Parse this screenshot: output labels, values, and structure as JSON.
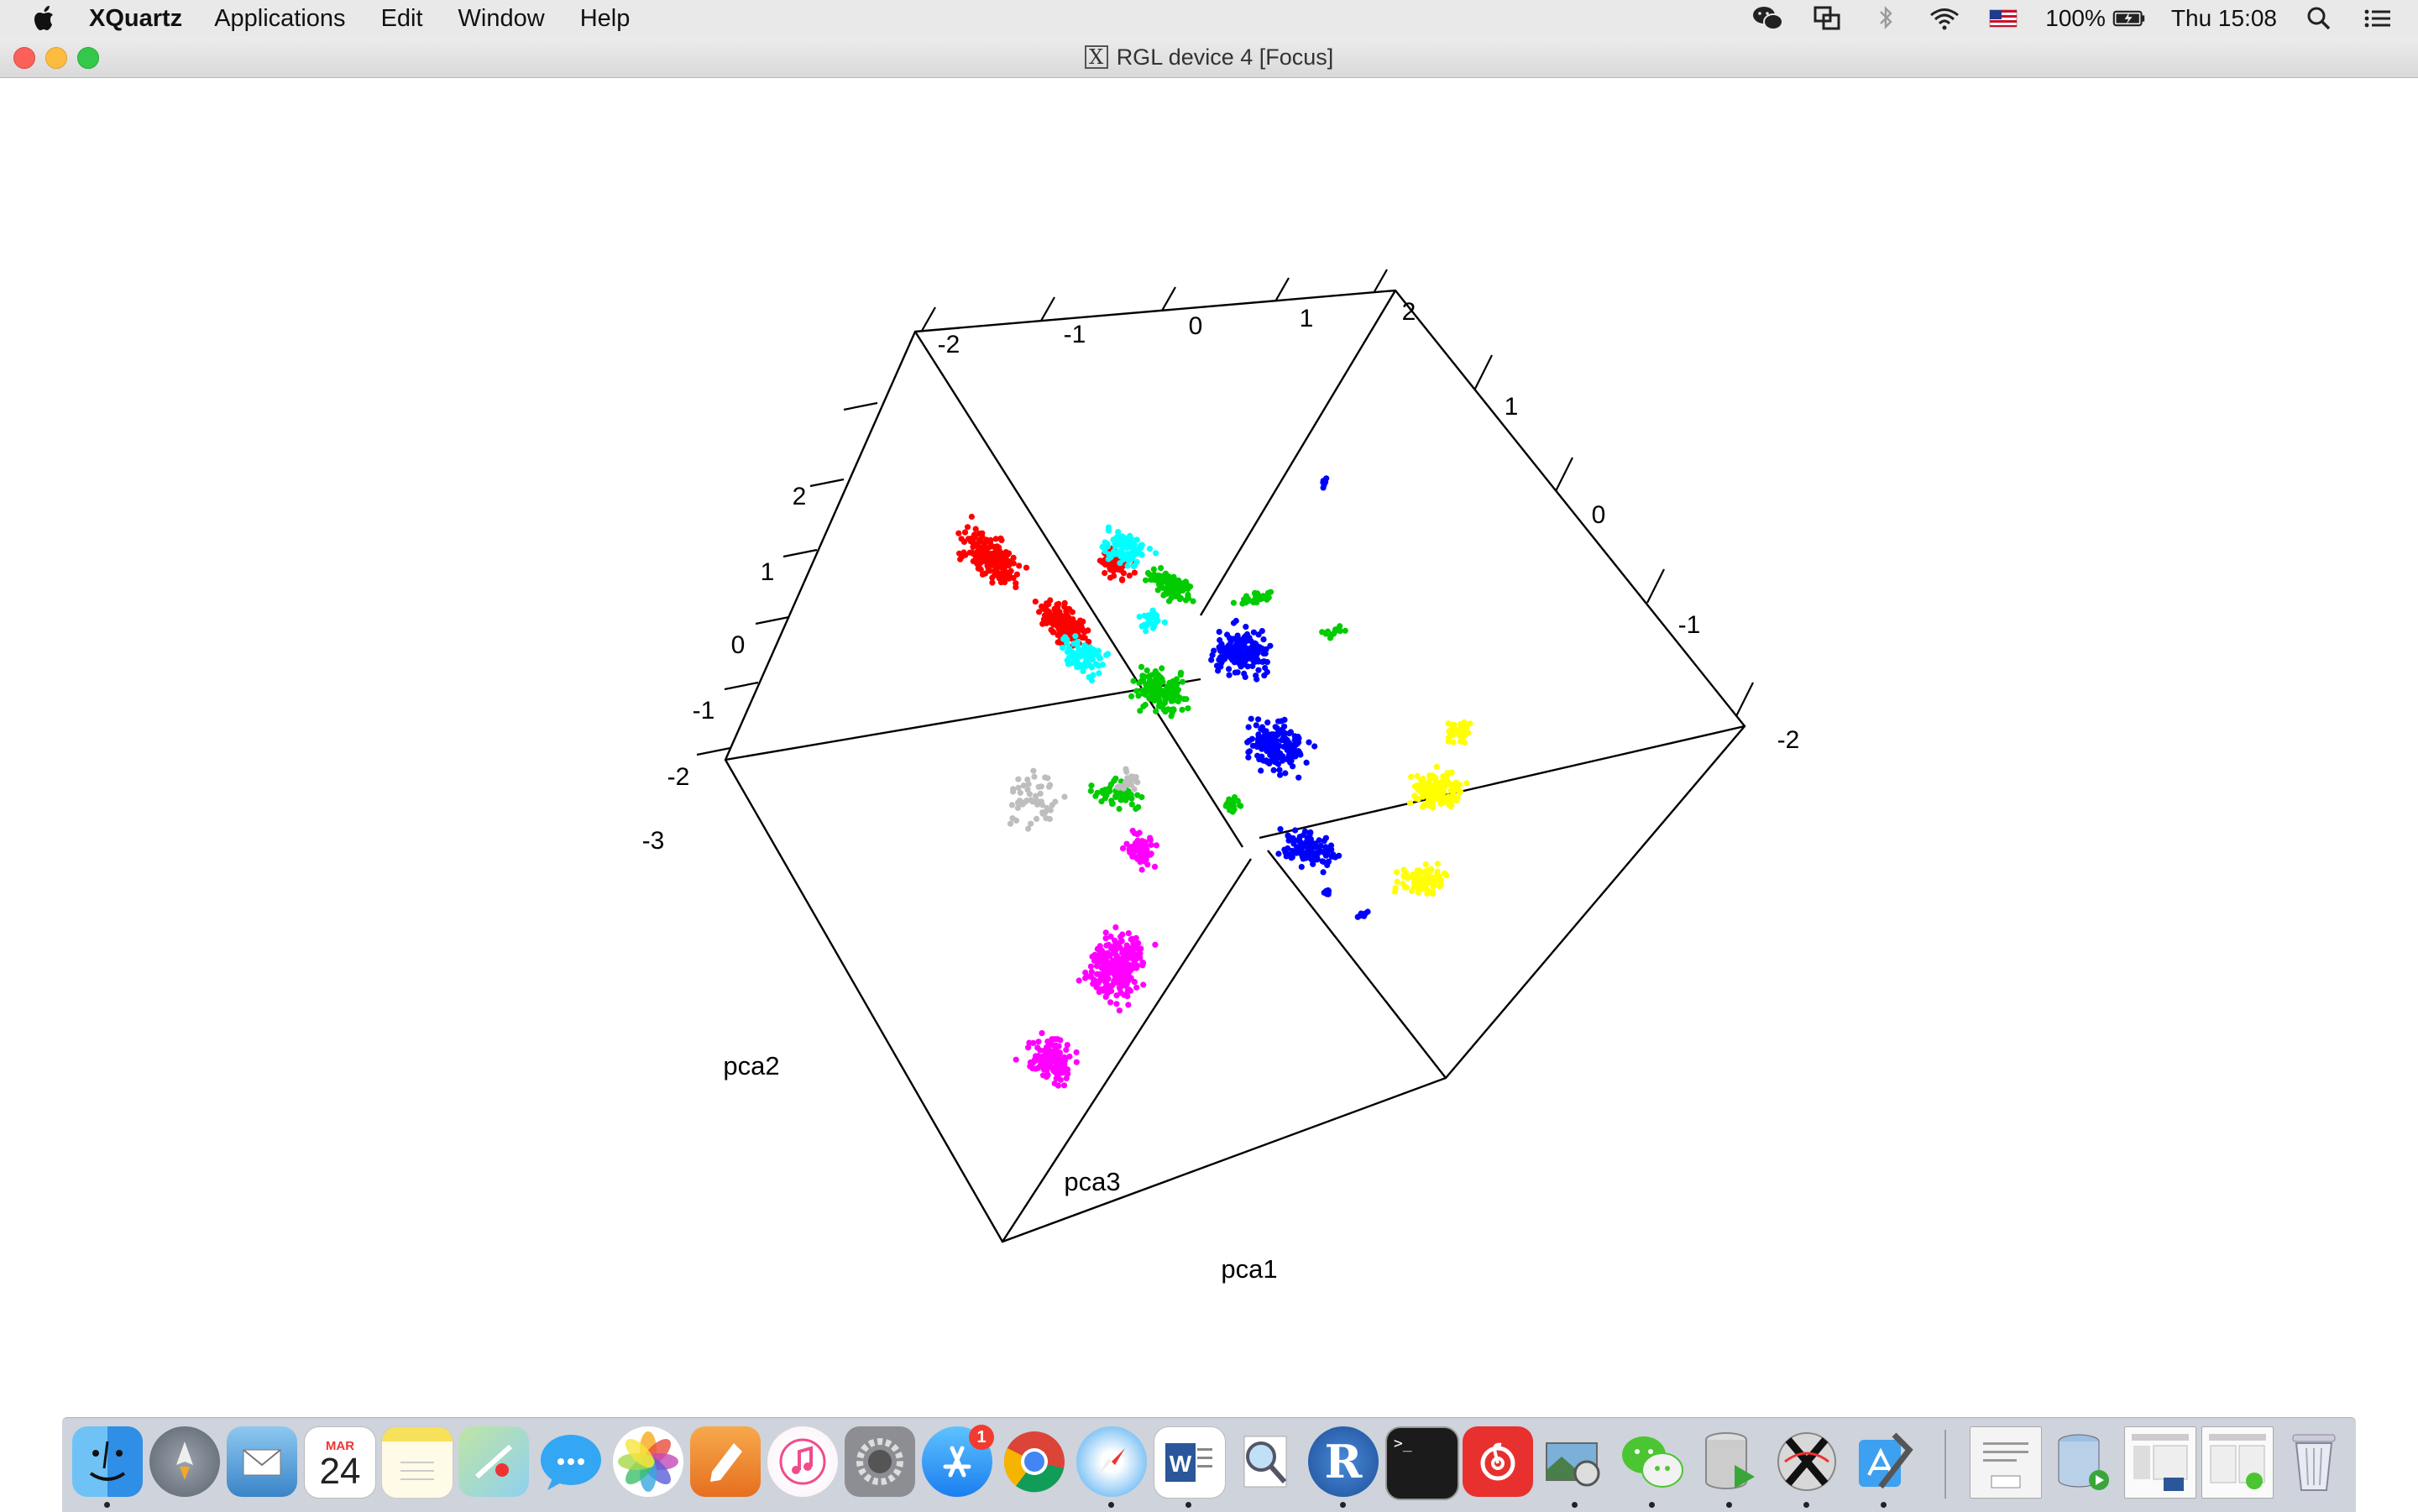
{
  "menubar": {
    "app_name": "XQuartz",
    "menus": [
      "Applications",
      "Edit",
      "Window",
      "Help"
    ],
    "status": {
      "battery": "100%",
      "clock": "Thu 15:08"
    }
  },
  "window": {
    "title": "RGL device 4 [Focus]"
  },
  "plot": {
    "axes": {
      "pca1_title": "pca1",
      "pca2_title": "pca2",
      "pca3_title": "pca3",
      "top_ticks": [
        "-2",
        "-1",
        "0",
        "1",
        "2"
      ],
      "left_ticks": [
        "2",
        "1",
        "0",
        "-1",
        "-2",
        "-3"
      ],
      "right_ticks": [
        "1",
        "0",
        "-1",
        "-2"
      ]
    },
    "clusters": [
      {
        "color": "#ff0000"
      },
      {
        "color": "#00ffff"
      },
      {
        "color": "#00cc00"
      },
      {
        "color": "#0000ff"
      },
      {
        "color": "#ffff00"
      },
      {
        "color": "#ff00ff"
      },
      {
        "color": "#bebebe"
      }
    ]
  },
  "dock": {
    "calendar_month": "MAR",
    "calendar_day": "24",
    "app_store_badge": "1",
    "items": [
      {
        "name": "finder-icon"
      },
      {
        "name": "launchpad-icon"
      },
      {
        "name": "mail-icon"
      },
      {
        "name": "calendar-icon"
      },
      {
        "name": "notes-icon"
      },
      {
        "name": "maps-icon"
      },
      {
        "name": "messages-icon"
      },
      {
        "name": "photos-icon"
      },
      {
        "name": "pages-icon"
      },
      {
        "name": "itunes-icon"
      },
      {
        "name": "system-preferences-icon"
      },
      {
        "name": "app-store-icon"
      },
      {
        "name": "chrome-icon"
      },
      {
        "name": "safari-icon"
      },
      {
        "name": "word-icon"
      },
      {
        "name": "preview-icon"
      },
      {
        "name": "r-icon"
      },
      {
        "name": "terminal-icon"
      },
      {
        "name": "netease-music-icon"
      },
      {
        "name": "image-capture-icon"
      },
      {
        "name": "wechat-icon"
      },
      {
        "name": "database-icon"
      },
      {
        "name": "xquartz-icon"
      },
      {
        "name": "xcode-icon"
      },
      {
        "name": "docx-document-icon"
      },
      {
        "name": "sequel-icon"
      },
      {
        "name": "window-thumbnail-icon"
      },
      {
        "name": "window-thumbnail-2-icon"
      },
      {
        "name": "trash-icon"
      }
    ]
  }
}
